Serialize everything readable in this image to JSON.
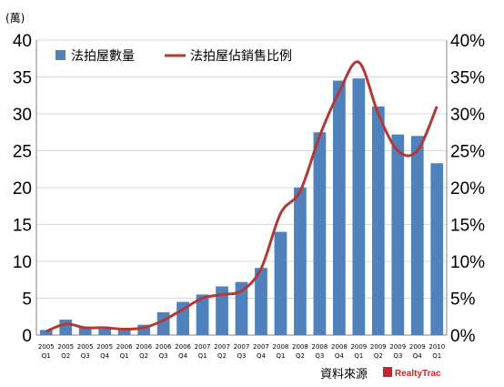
{
  "chart_data": {
    "type": "bar",
    "y_unit_label": "(萬)",
    "categories": [
      [
        "2005",
        "Q1"
      ],
      [
        "2005",
        "Q2"
      ],
      [
        "2005",
        "Q3"
      ],
      [
        "2005",
        "Q4"
      ],
      [
        "2006",
        "Q1"
      ],
      [
        "2006",
        "Q2"
      ],
      [
        "2006",
        "Q3"
      ],
      [
        "2006",
        "Q4"
      ],
      [
        "2007",
        "Q1"
      ],
      [
        "2007",
        "Q2"
      ],
      [
        "2007",
        "Q3"
      ],
      [
        "2007",
        "Q4"
      ],
      [
        "2008",
        "Q1"
      ],
      [
        "2008",
        "Q2"
      ],
      [
        "2008",
        "Q3"
      ],
      [
        "2008",
        "Q4"
      ],
      [
        "2009",
        "Q1"
      ],
      [
        "2009",
        "Q2"
      ],
      [
        "2009",
        "Q3"
      ],
      [
        "2009",
        "Q4"
      ],
      [
        "2010",
        "Q1"
      ]
    ],
    "series": [
      {
        "name": "法拍屋數量",
        "kind": "bar",
        "axis": "left",
        "color": "#4f81bd",
        "values": [
          0.7,
          2.1,
          1.1,
          0.8,
          0.7,
          1.4,
          3.1,
          4.5,
          5.5,
          6.6,
          7.2,
          9.1,
          14.0,
          20.0,
          27.5,
          34.5,
          34.8,
          31.0,
          27.2,
          27.0,
          23.3
        ]
      },
      {
        "name": "法拍屋佔銷售比例",
        "kind": "line",
        "axis": "right",
        "color": "#b03a35",
        "values": [
          0.5,
          1.5,
          1.0,
          1.0,
          0.8,
          1.0,
          2.0,
          3.5,
          5.0,
          5.5,
          6.0,
          9.0,
          16.5,
          19.5,
          27.0,
          33.0,
          37.0,
          30.0,
          25.0,
          25.0,
          31.0
        ]
      }
    ],
    "y_left": {
      "min": 0,
      "max": 40,
      "ticks": [
        "0",
        "5",
        "10",
        "15",
        "20",
        "25",
        "30",
        "35",
        "40"
      ]
    },
    "y_right": {
      "min": 0,
      "max": 40,
      "ticks": [
        "0%",
        "5%",
        "10%",
        "15%",
        "20%",
        "25%",
        "30%",
        "35%",
        "40%"
      ]
    },
    "grid": true,
    "legend": "top-left"
  },
  "footer": {
    "source": "資料來源",
    "logo_text": "RealtyTrac"
  }
}
